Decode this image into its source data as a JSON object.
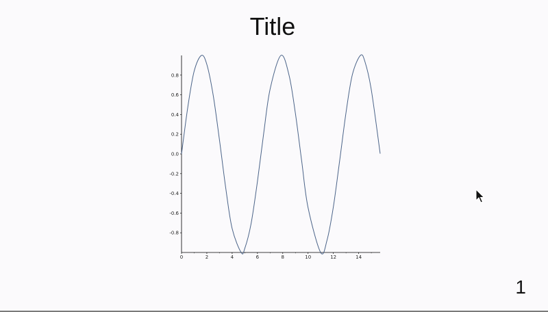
{
  "slide": {
    "title": "Title",
    "page_number": "1"
  },
  "colors": {
    "background": "#fbfafc",
    "line": "#4a6388",
    "axis": "#000000"
  },
  "chart_data": {
    "type": "line",
    "title": "",
    "xlabel": "",
    "ylabel": "",
    "function": "sin(x)",
    "xlim": [
      0,
      15.7
    ],
    "ylim": [
      -1,
      1
    ],
    "x_ticks": [
      0,
      2,
      4,
      6,
      8,
      10,
      12,
      14
    ],
    "y_ticks": [
      -0.8,
      -0.6,
      -0.4,
      -0.2,
      0.0,
      0.2,
      0.4,
      0.6,
      0.8
    ],
    "x_tick_labels": [
      "0",
      "2",
      "4",
      "6",
      "8",
      "10",
      "12",
      "14"
    ],
    "y_tick_labels": [
      "-0.8",
      "-0.6",
      "-0.4",
      "-0.2",
      "0.0",
      "0.2",
      "0.4",
      "0.6",
      "0.8"
    ],
    "grid": false,
    "series": [
      {
        "x": [
          0,
          0.5,
          1.0,
          1.5708,
          2.0,
          2.5,
          3.0,
          3.5,
          4.0,
          4.7124,
          5.0,
          5.5,
          6.0,
          6.5,
          7.0,
          7.854,
          8.5,
          9.0,
          9.5,
          10.0,
          10.9956,
          11.5,
          12.0,
          12.5,
          13.0,
          13.5,
          14.1372,
          14.5,
          15.0,
          15.7
        ],
        "y": [
          0.0,
          0.479,
          0.841,
          1.0,
          0.909,
          0.598,
          0.141,
          -0.351,
          -0.757,
          -1.0,
          -0.959,
          -0.706,
          -0.279,
          0.215,
          0.657,
          1.0,
          0.798,
          0.412,
          -0.075,
          -0.544,
          -1.0,
          -0.875,
          -0.537,
          -0.066,
          0.42,
          0.804,
          1.0,
          0.935,
          0.65,
          0.003
        ]
      }
    ]
  }
}
